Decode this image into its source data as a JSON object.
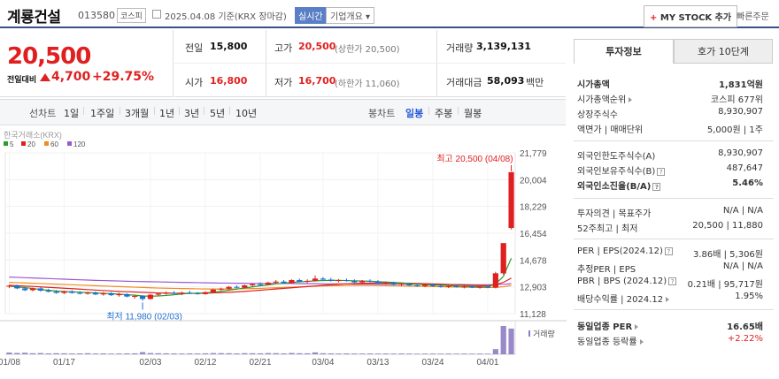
{
  "header": {
    "name": "계룡건설",
    "code": "013580",
    "market": "코스피",
    "date": "2025.04.08 기준(KRX 장마감)",
    "live": "실시간",
    "company": "기업개요",
    "mystock": "MY STOCK 추가",
    "quick": "빠른주문"
  },
  "price": {
    "current": "20,500",
    "vs_label": "전일대비",
    "change": "4,700",
    "change_rate": "+29.75%"
  },
  "stats": {
    "prev_label": "전일",
    "prev": "15,800",
    "open_label": "시가",
    "open": "16,800",
    "high_label": "고가",
    "high": "20,500",
    "high_sub": "(상한가 20,500)",
    "low_label": "저가",
    "low": "16,700",
    "low_sub": "(하한가 11,060)",
    "vol_label": "거래량",
    "vol": "3,139,131",
    "amt_label": "거래대금",
    "amt": "58,093",
    "amt_unit": "백만"
  },
  "periods": {
    "line_label": "선차트",
    "d1": "1일",
    "w1": "1주일",
    "m3": "3개월",
    "y1": "1년",
    "y3": "3년",
    "y5": "5년",
    "y10": "10년",
    "candle_label": "봉차트",
    "daily": "일봉",
    "weekly": "주봉",
    "monthly": "월봉"
  },
  "chart_data": {
    "type": "candlestick",
    "source": "한국거래소(KRX)",
    "legend": [
      {
        "name": "5",
        "color": "#2a9d2a"
      },
      {
        "name": "20",
        "color": "#e02020"
      },
      {
        "name": "60",
        "color": "#f08a24"
      },
      {
        "name": "120",
        "color": "#9b59d0"
      }
    ],
    "y_ticks": [
      11128,
      12903,
      14678,
      16454,
      18229,
      20004,
      21779
    ],
    "y_tick_labels": [
      "11,128",
      "12,903",
      "14,678",
      "16,454",
      "18,229",
      "20,004",
      "21,779"
    ],
    "ylim": [
      11128,
      21779
    ],
    "x_tick_labels": [
      "01/08",
      "01/17",
      "02/03",
      "02/12",
      "02/21",
      "03/04",
      "03/13",
      "03/24",
      "04/01"
    ],
    "high_annot": "최고 20,500 (04/08)",
    "low_annot": "최저 11,980 (02/03)",
    "volume_label": "거래량",
    "candles": [
      {
        "o": 12920,
        "h": 13050,
        "l": 12820,
        "c": 12980
      },
      {
        "o": 12980,
        "h": 13050,
        "l": 12750,
        "c": 12800
      },
      {
        "o": 12800,
        "h": 12900,
        "l": 12620,
        "c": 12680
      },
      {
        "o": 12680,
        "h": 12850,
        "l": 12600,
        "c": 12800
      },
      {
        "o": 12800,
        "h": 12880,
        "l": 12580,
        "c": 12650
      },
      {
        "o": 12650,
        "h": 12780,
        "l": 12540,
        "c": 12580
      },
      {
        "o": 12580,
        "h": 12700,
        "l": 12450,
        "c": 12500
      },
      {
        "o": 12500,
        "h": 12650,
        "l": 12420,
        "c": 12600
      },
      {
        "o": 12600,
        "h": 12680,
        "l": 12450,
        "c": 12500
      },
      {
        "o": 12500,
        "h": 12620,
        "l": 12400,
        "c": 12450
      },
      {
        "o": 12450,
        "h": 12580,
        "l": 12380,
        "c": 12520
      },
      {
        "o": 12520,
        "h": 12600,
        "l": 12350,
        "c": 12400
      },
      {
        "o": 12400,
        "h": 12560,
        "l": 12320,
        "c": 12480
      },
      {
        "o": 12480,
        "h": 12550,
        "l": 12300,
        "c": 12350
      },
      {
        "o": 12350,
        "h": 12500,
        "l": 12250,
        "c": 12420
      },
      {
        "o": 12420,
        "h": 12480,
        "l": 12200,
        "c": 12260
      },
      {
        "o": 12260,
        "h": 12380,
        "l": 12120,
        "c": 12300
      },
      {
        "o": 12300,
        "h": 12350,
        "l": 11980,
        "c": 12100
      },
      {
        "o": 12100,
        "h": 12420,
        "l": 12050,
        "c": 12380
      },
      {
        "o": 12380,
        "h": 12520,
        "l": 12300,
        "c": 12450
      },
      {
        "o": 12450,
        "h": 12600,
        "l": 12380,
        "c": 12500
      },
      {
        "o": 12500,
        "h": 12620,
        "l": 12400,
        "c": 12450
      },
      {
        "o": 12450,
        "h": 12580,
        "l": 12350,
        "c": 12520
      },
      {
        "o": 12520,
        "h": 12650,
        "l": 12420,
        "c": 12480
      },
      {
        "o": 12480,
        "h": 12560,
        "l": 12380,
        "c": 12420
      },
      {
        "o": 12420,
        "h": 12600,
        "l": 12380,
        "c": 12550
      },
      {
        "o": 12550,
        "h": 12780,
        "l": 12500,
        "c": 12720
      },
      {
        "o": 12720,
        "h": 12850,
        "l": 12650,
        "c": 12780
      },
      {
        "o": 12780,
        "h": 12950,
        "l": 12700,
        "c": 12900
      },
      {
        "o": 12900,
        "h": 13000,
        "l": 12800,
        "c": 12850
      },
      {
        "o": 12850,
        "h": 13050,
        "l": 12800,
        "c": 13000
      },
      {
        "o": 13000,
        "h": 13150,
        "l": 12900,
        "c": 13080
      },
      {
        "o": 13080,
        "h": 13200,
        "l": 12980,
        "c": 13050
      },
      {
        "o": 13050,
        "h": 13250,
        "l": 13000,
        "c": 13180
      },
      {
        "o": 13180,
        "h": 13350,
        "l": 13100,
        "c": 13250
      },
      {
        "o": 13250,
        "h": 13350,
        "l": 13100,
        "c": 13150
      },
      {
        "o": 13150,
        "h": 13400,
        "l": 13100,
        "c": 13350
      },
      {
        "o": 13350,
        "h": 13450,
        "l": 13200,
        "c": 13250
      },
      {
        "o": 13250,
        "h": 13400,
        "l": 13150,
        "c": 13300
      },
      {
        "o": 13300,
        "h": 13650,
        "l": 13250,
        "c": 13450
      },
      {
        "o": 13450,
        "h": 13550,
        "l": 13300,
        "c": 13380
      },
      {
        "o": 13380,
        "h": 13500,
        "l": 13250,
        "c": 13300
      },
      {
        "o": 13300,
        "h": 13420,
        "l": 13200,
        "c": 13350
      },
      {
        "o": 13350,
        "h": 13450,
        "l": 13250,
        "c": 13300
      },
      {
        "o": 13300,
        "h": 13400,
        "l": 13150,
        "c": 13200
      },
      {
        "o": 13200,
        "h": 13350,
        "l": 13150,
        "c": 13300
      },
      {
        "o": 13300,
        "h": 13400,
        "l": 13200,
        "c": 13250
      },
      {
        "o": 13250,
        "h": 13350,
        "l": 13100,
        "c": 13150
      },
      {
        "o": 13150,
        "h": 13250,
        "l": 13050,
        "c": 13180
      },
      {
        "o": 13180,
        "h": 13250,
        "l": 13000,
        "c": 13050
      },
      {
        "o": 13050,
        "h": 13150,
        "l": 12950,
        "c": 13100
      },
      {
        "o": 13100,
        "h": 13180,
        "l": 12950,
        "c": 13000
      },
      {
        "o": 13000,
        "h": 13100,
        "l": 12900,
        "c": 12950
      },
      {
        "o": 12950,
        "h": 13100,
        "l": 12880,
        "c": 13050
      },
      {
        "o": 13050,
        "h": 13120,
        "l": 12900,
        "c": 12950
      },
      {
        "o": 12950,
        "h": 13050,
        "l": 12850,
        "c": 12900
      },
      {
        "o": 12900,
        "h": 13000,
        "l": 12820,
        "c": 12950
      },
      {
        "o": 12950,
        "h": 13050,
        "l": 12850,
        "c": 12880
      },
      {
        "o": 12880,
        "h": 13000,
        "l": 12800,
        "c": 12920
      },
      {
        "o": 12920,
        "h": 13000,
        "l": 12820,
        "c": 12850
      },
      {
        "o": 12850,
        "h": 12950,
        "l": 12780,
        "c": 12900
      },
      {
        "o": 12900,
        "h": 13000,
        "l": 12820,
        "c": 12850
      },
      {
        "o": 12850,
        "h": 13900,
        "l": 12800,
        "c": 13800
      },
      {
        "o": 13800,
        "h": 15800,
        "l": 13700,
        "c": 15800
      },
      {
        "o": 16800,
        "h": 20500,
        "l": 16700,
        "c": 20500
      }
    ],
    "ma5": [
      12950,
      12900,
      12850,
      12800,
      12720,
      12680,
      12620,
      12590,
      12570,
      12550,
      12520,
      12500,
      12470,
      12450,
      12420,
      12380,
      12350,
      12300,
      12280,
      12300,
      12330,
      12380,
      12430,
      12470,
      12480,
      12500,
      12550,
      12610,
      12680,
      12750,
      12830,
      12900,
      12970,
      13030,
      13100,
      13140,
      13190,
      13230,
      13260,
      13300,
      13320,
      13330,
      13330,
      13320,
      13300,
      13290,
      13270,
      13240,
      13220,
      13190,
      13160,
      13120,
      13080,
      13050,
      13030,
      13010,
      12990,
      12960,
      12940,
      12920,
      12900,
      12890,
      13100,
      13600,
      14800
    ],
    "ma20": [
      13000,
      12980,
      12950,
      12930,
      12900,
      12870,
      12840,
      12810,
      12780,
      12750,
      12720,
      12690,
      12660,
      12630,
      12600,
      12580,
      12560,
      12540,
      12520,
      12500,
      12490,
      12480,
      12470,
      12470,
      12470,
      12480,
      12500,
      12520,
      12540,
      12570,
      12600,
      12640,
      12680,
      12720,
      12760,
      12800,
      12840,
      12880,
      12920,
      12960,
      13000,
      13040,
      13070,
      13100,
      13120,
      13140,
      13150,
      13160,
      13160,
      13160,
      13150,
      13140,
      13130,
      13110,
      13100,
      13080,
      13060,
      13040,
      13020,
      13000,
      12980,
      12970,
      13050,
      13200,
      13480
    ],
    "ma60": [
      13200,
      13180,
      13160,
      13140,
      13120,
      13100,
      13080,
      13060,
      13040,
      13020,
      13000,
      12980,
      12960,
      12940,
      12920,
      12900,
      12880,
      12860,
      12840,
      12820,
      12810,
      12800,
      12790,
      12780,
      12770,
      12760,
      12760,
      12760,
      12760,
      12770,
      12780,
      12790,
      12800,
      12820,
      12840,
      12860,
      12880,
      12900,
      12920,
      12940,
      12960,
      12970,
      12980,
      12990,
      13000,
      13000,
      13000,
      12990,
      12980,
      12970,
      12960,
      12950,
      12940,
      12930,
      12920,
      12910,
      12900,
      12890,
      12880,
      12870,
      12860,
      12850,
      12870,
      12910,
      12990
    ],
    "ma120": [
      13550,
      13530,
      13510,
      13490,
      13470,
      13450,
      13430,
      13410,
      13390,
      13370,
      13350,
      13330,
      13320,
      13300,
      13290,
      13270,
      13260,
      13250,
      13240,
      13230,
      13220,
      13210,
      13200,
      13190,
      13180,
      13170,
      13160,
      13150,
      13150,
      13140,
      13140,
      13130,
      13130,
      13130,
      13120,
      13120,
      13120,
      13110,
      13110,
      13110,
      13100,
      13100,
      13100,
      13100,
      13090,
      13090,
      13090,
      13080,
      13080,
      13080,
      13070,
      13070,
      13070,
      13060,
      13060,
      13060,
      13050,
      13050,
      13050,
      13040,
      13040,
      13040,
      13050,
      13070,
      13110
    ],
    "volume": [
      20,
      15,
      18,
      12,
      14,
      10,
      12,
      11,
      9,
      10,
      12,
      9,
      10,
      8,
      9,
      10,
      11,
      25,
      14,
      12,
      11,
      10,
      9,
      10,
      9,
      11,
      14,
      13,
      12,
      10,
      13,
      12,
      11,
      14,
      13,
      10,
      15,
      12,
      11,
      22,
      12,
      10,
      9,
      10,
      9,
      8,
      9,
      8,
      9,
      8,
      9,
      8,
      7,
      8,
      8,
      7,
      8,
      7,
      8,
      7,
      8,
      7,
      60,
      330,
      300
    ]
  },
  "info": {
    "tab1": "투자정보",
    "tab2": "호가 10단계",
    "rows": [
      {
        "k": "시가총액",
        "v": "1,831억원"
      },
      {
        "k": "시가총액순위",
        "v": "코스피 677위"
      },
      {
        "k": "상장주식수",
        "v": "8,930,907"
      },
      {
        "k": "액면가 | 매매단위",
        "v": "5,000원 | 1주"
      },
      {
        "k": "외국인한도주식수(A)",
        "v": "8,930,907"
      },
      {
        "k": "외국인보유주식수(B)",
        "v": "487,647"
      },
      {
        "k": "외국인소진율(B/A)",
        "v": "5.46%"
      },
      {
        "k": "투자의견 | 목표주가",
        "v": "N/A | N/A"
      },
      {
        "k": "52주최고 | 최저",
        "v": "20,500 | 11,880"
      },
      {
        "k": "PER | EPS(2024.12)",
        "v": "3.86배 | 5,306원"
      },
      {
        "k": "추정PER | EPS",
        "v": "N/A | N/A"
      },
      {
        "k": "PBR | BPS (2024.12)",
        "v": "0.21배 | 95,717원"
      },
      {
        "k": "배당수익률 | 2024.12",
        "v": "1.95%"
      },
      {
        "k": "동일업종 PER",
        "v": "16.65배"
      },
      {
        "k": "동일업종 등락률",
        "v": "+2.22%"
      }
    ]
  },
  "colors": {
    "up": "#e02020",
    "down": "#1f6fd1",
    "accent": "#3a4f8a"
  }
}
